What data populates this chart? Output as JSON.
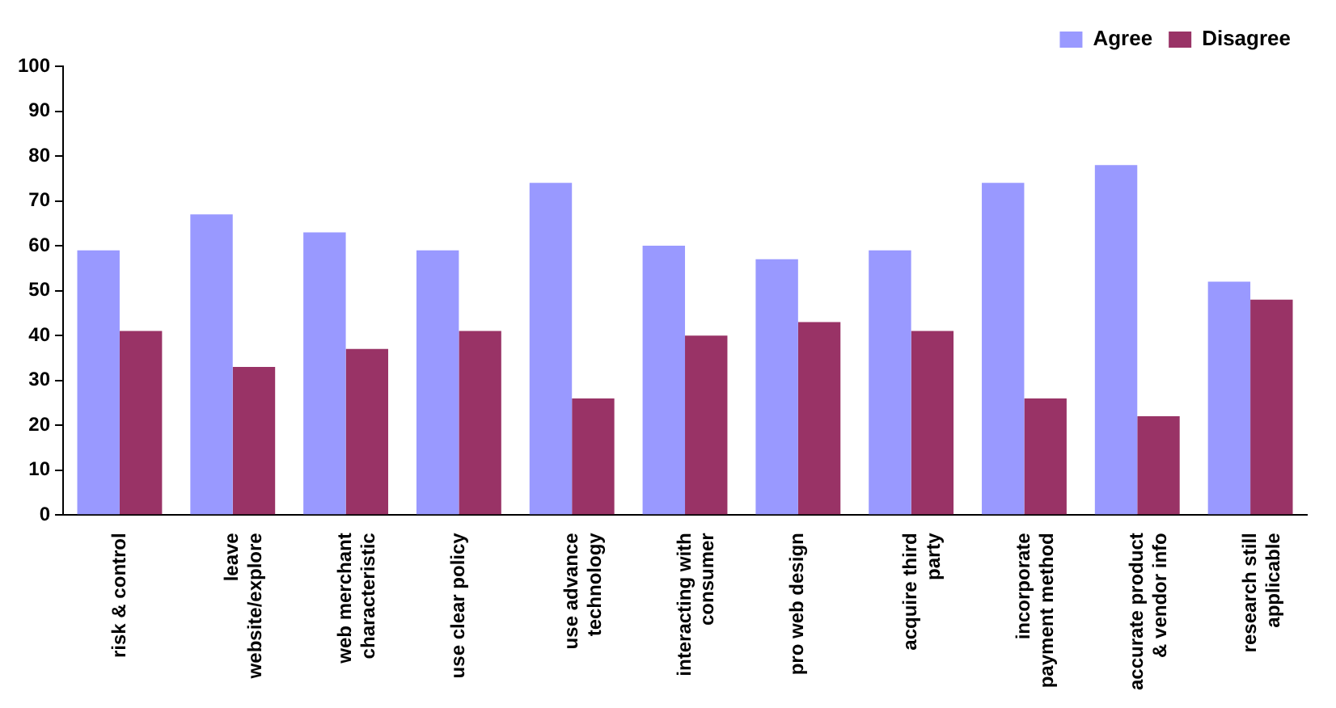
{
  "chart_data": {
    "type": "bar",
    "categories": [
      "risk & control",
      "leave website/explore",
      "web merchant characteristic",
      "use clear policy",
      "use advance technology",
      "interacting with consumer",
      "pro web design",
      "acquire third party",
      "incorporate payment method",
      "accurate product & vendor info",
      "research still applicable"
    ],
    "series": [
      {
        "name": "Agree",
        "color": "#9999ff",
        "values": [
          59,
          67,
          63,
          59,
          74,
          60,
          57,
          59,
          74,
          78,
          52
        ]
      },
      {
        "name": "Disagree",
        "color": "#993366",
        "values": [
          41,
          33,
          37,
          41,
          26,
          40,
          43,
          41,
          26,
          22,
          48
        ]
      }
    ],
    "ylim": [
      0,
      100
    ],
    "yticks": [
      0,
      10,
      20,
      30,
      40,
      50,
      60,
      70,
      80,
      90,
      100
    ],
    "grid": false,
    "legend": "top right"
  }
}
